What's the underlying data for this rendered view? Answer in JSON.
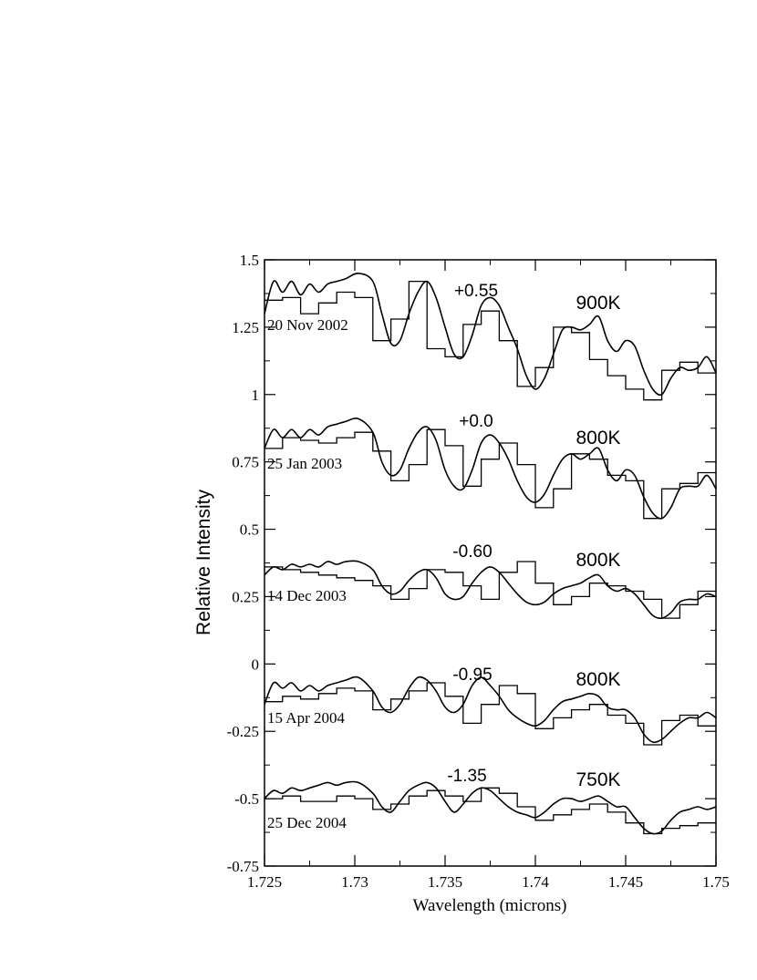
{
  "chart_data": {
    "type": "line",
    "xlabel": "Wavelength (microns)",
    "ylabel": "Relative Intensity",
    "xlim": [
      1.725,
      1.75
    ],
    "ylim": [
      -0.75,
      1.5
    ],
    "xticks": [
      1.725,
      1.73,
      1.735,
      1.74,
      1.745,
      1.75
    ],
    "xtick_labels": [
      "1.725",
      "1.73",
      "1.735",
      "1.74",
      "1.745",
      "1.75"
    ],
    "yticks": [
      1.5,
      1.25,
      1,
      0.75,
      0.5,
      0.25,
      0,
      -0.25,
      -0.5,
      -0.75
    ],
    "ytick_labels": [
      "1.5",
      "1.25",
      "1",
      "0.75",
      "0.5",
      "0.25",
      "0",
      "-0.25",
      "-0.5",
      "-0.75"
    ],
    "grid": false,
    "bin_edges": [
      1.725,
      1.726,
      1.727,
      1.728,
      1.729,
      1.73,
      1.731,
      1.732,
      1.733,
      1.734,
      1.735,
      1.736,
      1.737,
      1.738,
      1.739,
      1.74,
      1.741,
      1.742,
      1.743,
      1.744,
      1.745,
      1.746,
      1.747,
      1.748,
      1.749,
      1.75
    ],
    "series": [
      {
        "date": "20 Nov 2002",
        "offset_label": "+0.55",
        "temp_label": "900K",
        "observed": [
          1.35,
          1.36,
          1.3,
          1.34,
          1.38,
          1.36,
          1.2,
          1.28,
          1.42,
          1.17,
          1.14,
          1.26,
          1.31,
          1.2,
          1.03,
          1.1,
          1.25,
          1.23,
          1.13,
          1.07,
          1.02,
          0.98,
          1.09,
          1.12,
          1.08
        ],
        "model_x": [
          1.725,
          1.7255,
          1.726,
          1.7265,
          1.727,
          1.7275,
          1.728,
          1.7285,
          1.729,
          1.7295,
          1.7302,
          1.731,
          1.7315,
          1.732,
          1.7325,
          1.733,
          1.7335,
          1.734,
          1.7345,
          1.735,
          1.7355,
          1.736,
          1.7365,
          1.737,
          1.7375,
          1.738,
          1.7385,
          1.739,
          1.7395,
          1.74,
          1.7405,
          1.741,
          1.7415,
          1.742,
          1.7425,
          1.743,
          1.7435,
          1.744,
          1.7445,
          1.745,
          1.7455,
          1.746,
          1.7465,
          1.747,
          1.7475,
          1.748,
          1.7485,
          1.749,
          1.7495,
          1.75
        ],
        "model_y": [
          1.3,
          1.42,
          1.38,
          1.42,
          1.37,
          1.41,
          1.38,
          1.41,
          1.42,
          1.43,
          1.45,
          1.42,
          1.3,
          1.19,
          1.2,
          1.3,
          1.38,
          1.42,
          1.36,
          1.25,
          1.15,
          1.14,
          1.22,
          1.33,
          1.36,
          1.33,
          1.25,
          1.17,
          1.07,
          1.02,
          1.06,
          1.15,
          1.24,
          1.25,
          1.24,
          1.26,
          1.29,
          1.2,
          1.16,
          1.2,
          1.18,
          1.09,
          1.02,
          1.0,
          1.06,
          1.1,
          1.09,
          1.1,
          1.14,
          1.08
        ]
      },
      {
        "date": "25 Jan 2003",
        "offset_label": "+0.0",
        "temp_label": "800K",
        "observed": [
          0.8,
          0.84,
          0.83,
          0.82,
          0.84,
          0.86,
          0.79,
          0.68,
          0.74,
          0.87,
          0.81,
          0.66,
          0.76,
          0.82,
          0.74,
          0.58,
          0.65,
          0.78,
          0.76,
          0.7,
          0.68,
          0.54,
          0.65,
          0.67,
          0.71
        ],
        "model_x": [
          1.725,
          1.7255,
          1.726,
          1.7265,
          1.727,
          1.7275,
          1.728,
          1.7285,
          1.729,
          1.7295,
          1.7302,
          1.731,
          1.7315,
          1.732,
          1.7325,
          1.733,
          1.7335,
          1.734,
          1.7345,
          1.735,
          1.7355,
          1.736,
          1.7365,
          1.737,
          1.7375,
          1.738,
          1.7385,
          1.739,
          1.7395,
          1.74,
          1.7405,
          1.741,
          1.7415,
          1.742,
          1.7425,
          1.743,
          1.7435,
          1.744,
          1.7445,
          1.745,
          1.7455,
          1.746,
          1.7465,
          1.747,
          1.7475,
          1.748,
          1.7485,
          1.749,
          1.7495,
          1.75
        ],
        "model_y": [
          0.8,
          0.87,
          0.84,
          0.87,
          0.84,
          0.87,
          0.85,
          0.88,
          0.89,
          0.9,
          0.91,
          0.86,
          0.75,
          0.7,
          0.72,
          0.8,
          0.86,
          0.88,
          0.83,
          0.72,
          0.66,
          0.65,
          0.72,
          0.82,
          0.85,
          0.82,
          0.76,
          0.68,
          0.62,
          0.6,
          0.63,
          0.7,
          0.76,
          0.78,
          0.76,
          0.78,
          0.8,
          0.72,
          0.68,
          0.72,
          0.7,
          0.62,
          0.56,
          0.54,
          0.58,
          0.65,
          0.66,
          0.66,
          0.7,
          0.65
        ]
      },
      {
        "date": "14 Dec 2003",
        "offset_label": "-0.60",
        "temp_label": "800K",
        "observed": [
          0.36,
          0.35,
          0.34,
          0.33,
          0.32,
          0.31,
          0.29,
          0.24,
          0.28,
          0.35,
          0.34,
          0.29,
          0.24,
          0.34,
          0.38,
          0.3,
          0.22,
          0.25,
          0.3,
          0.29,
          0.27,
          0.24,
          0.17,
          0.22,
          0.27
        ],
        "model_x": [
          1.725,
          1.7255,
          1.726,
          1.7265,
          1.727,
          1.7275,
          1.728,
          1.7285,
          1.729,
          1.7295,
          1.7302,
          1.731,
          1.7315,
          1.732,
          1.7325,
          1.733,
          1.7335,
          1.734,
          1.7345,
          1.735,
          1.7355,
          1.736,
          1.7365,
          1.737,
          1.7375,
          1.738,
          1.7385,
          1.739,
          1.7395,
          1.74,
          1.7405,
          1.741,
          1.7415,
          1.742,
          1.7425,
          1.743,
          1.7435,
          1.744,
          1.7445,
          1.745,
          1.7455,
          1.746,
          1.7465,
          1.747,
          1.7475,
          1.748,
          1.7485,
          1.749,
          1.7495,
          1.75
        ],
        "model_y": [
          0.33,
          0.36,
          0.35,
          0.37,
          0.36,
          0.37,
          0.36,
          0.38,
          0.37,
          0.38,
          0.38,
          0.35,
          0.29,
          0.26,
          0.27,
          0.31,
          0.34,
          0.35,
          0.32,
          0.26,
          0.24,
          0.25,
          0.3,
          0.34,
          0.36,
          0.34,
          0.3,
          0.26,
          0.23,
          0.22,
          0.23,
          0.26,
          0.28,
          0.29,
          0.3,
          0.32,
          0.33,
          0.29,
          0.27,
          0.28,
          0.26,
          0.22,
          0.18,
          0.17,
          0.19,
          0.23,
          0.24,
          0.24,
          0.26,
          0.25
        ]
      },
      {
        "date": "15 Apr 2004",
        "offset_label": "-0.95",
        "temp_label": "800K",
        "observed": [
          -0.14,
          -0.12,
          -0.13,
          -0.11,
          -0.09,
          -0.1,
          -0.17,
          -0.13,
          -0.1,
          -0.07,
          -0.12,
          -0.22,
          -0.15,
          -0.08,
          -0.11,
          -0.24,
          -0.2,
          -0.17,
          -0.15,
          -0.19,
          -0.22,
          -0.3,
          -0.21,
          -0.19,
          -0.23
        ],
        "model_x": [
          1.725,
          1.7255,
          1.726,
          1.7265,
          1.727,
          1.7275,
          1.728,
          1.7285,
          1.729,
          1.7295,
          1.7302,
          1.731,
          1.7315,
          1.732,
          1.7325,
          1.733,
          1.7335,
          1.734,
          1.7345,
          1.735,
          1.7355,
          1.736,
          1.7365,
          1.737,
          1.7375,
          1.738,
          1.7385,
          1.739,
          1.7395,
          1.74,
          1.7405,
          1.741,
          1.7415,
          1.742,
          1.7425,
          1.743,
          1.7435,
          1.744,
          1.7445,
          1.745,
          1.7455,
          1.746,
          1.7465,
          1.747,
          1.7475,
          1.748,
          1.7485,
          1.749,
          1.7495,
          1.75
        ],
        "model_y": [
          -0.15,
          -0.07,
          -0.09,
          -0.07,
          -0.1,
          -0.08,
          -0.1,
          -0.08,
          -0.07,
          -0.06,
          -0.05,
          -0.1,
          -0.16,
          -0.18,
          -0.15,
          -0.09,
          -0.05,
          -0.06,
          -0.1,
          -0.16,
          -0.18,
          -0.15,
          -0.08,
          -0.05,
          -0.08,
          -0.12,
          -0.17,
          -0.2,
          -0.22,
          -0.23,
          -0.21,
          -0.17,
          -0.14,
          -0.13,
          -0.12,
          -0.11,
          -0.12,
          -0.16,
          -0.17,
          -0.17,
          -0.2,
          -0.26,
          -0.29,
          -0.28,
          -0.25,
          -0.22,
          -0.2,
          -0.2,
          -0.18,
          -0.2
        ]
      },
      {
        "date": "25 Dec 2004",
        "offset_label": "-1.35",
        "temp_label": "750K",
        "observed": [
          -0.5,
          -0.49,
          -0.51,
          -0.51,
          -0.49,
          -0.5,
          -0.54,
          -0.52,
          -0.49,
          -0.47,
          -0.49,
          -0.51,
          -0.46,
          -0.48,
          -0.53,
          -0.58,
          -0.56,
          -0.54,
          -0.52,
          -0.55,
          -0.59,
          -0.63,
          -0.61,
          -0.6,
          -0.59
        ],
        "model_x": [
          1.725,
          1.7255,
          1.726,
          1.7265,
          1.727,
          1.7275,
          1.728,
          1.7285,
          1.729,
          1.7295,
          1.7302,
          1.731,
          1.7315,
          1.732,
          1.7325,
          1.733,
          1.7335,
          1.734,
          1.7345,
          1.735,
          1.7355,
          1.736,
          1.7365,
          1.737,
          1.7375,
          1.738,
          1.7385,
          1.739,
          1.7395,
          1.74,
          1.7405,
          1.741,
          1.7415,
          1.742,
          1.7425,
          1.743,
          1.7435,
          1.744,
          1.7445,
          1.745,
          1.7455,
          1.746,
          1.7465,
          1.747,
          1.7475,
          1.748,
          1.7485,
          1.749,
          1.7495,
          1.75
        ],
        "model_y": [
          -0.5,
          -0.47,
          -0.48,
          -0.46,
          -0.47,
          -0.46,
          -0.45,
          -0.44,
          -0.45,
          -0.44,
          -0.44,
          -0.48,
          -0.53,
          -0.55,
          -0.51,
          -0.47,
          -0.45,
          -0.44,
          -0.46,
          -0.51,
          -0.55,
          -0.52,
          -0.48,
          -0.46,
          -0.47,
          -0.5,
          -0.53,
          -0.55,
          -0.56,
          -0.57,
          -0.55,
          -0.52,
          -0.5,
          -0.5,
          -0.51,
          -0.5,
          -0.49,
          -0.51,
          -0.53,
          -0.53,
          -0.57,
          -0.61,
          -0.63,
          -0.62,
          -0.58,
          -0.55,
          -0.54,
          -0.53,
          -0.54,
          -0.53
        ]
      }
    ]
  }
}
